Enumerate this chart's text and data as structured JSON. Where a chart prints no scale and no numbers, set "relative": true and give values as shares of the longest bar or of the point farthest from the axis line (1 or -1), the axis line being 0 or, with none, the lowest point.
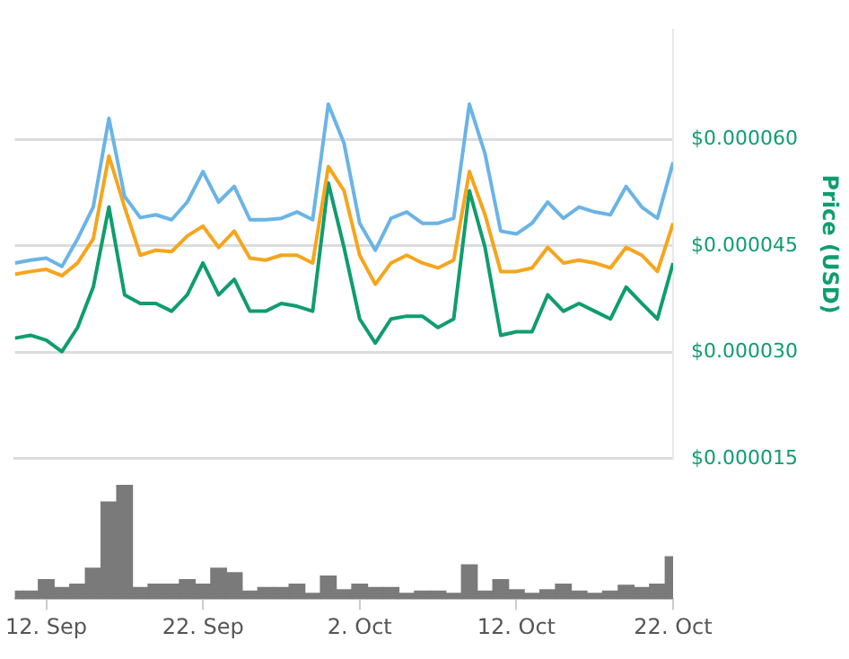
{
  "chart_data": [
    {
      "type": "line",
      "ylabel": "Price (USD)",
      "x": [
        "--09-10",
        "--09-11",
        "--09-12",
        "--09-13",
        "--09-14",
        "--09-15",
        "--09-16",
        "--09-17",
        "--09-18",
        "--09-19",
        "--09-20",
        "--09-21",
        "--09-22",
        "--09-23",
        "--09-24",
        "--09-25",
        "--09-26",
        "--09-27",
        "--09-28",
        "--09-29",
        "--09-30",
        "--10-01",
        "--10-02",
        "--10-03",
        "--10-04",
        "--10-05",
        "--10-06",
        "--10-07",
        "--10-08",
        "--10-09",
        "--10-10",
        "--10-11",
        "--10-12",
        "--10-13",
        "--10-14",
        "--10-15",
        "--10-16",
        "--10-17",
        "--10-18",
        "--10-19",
        "--10-20",
        "--10-21",
        "--10-22"
      ],
      "series": [
        {
          "color": "#6ab4e6",
          "values": [
            4.26e-05,
            4.3e-05,
            4.33e-05,
            4.21e-05,
            4.6e-05,
            5.05e-05,
            6.3e-05,
            5.2e-05,
            4.9e-05,
            4.94e-05,
            4.87e-05,
            5.12e-05,
            5.55e-05,
            5.12e-05,
            5.34e-05,
            4.87e-05,
            4.87e-05,
            4.89e-05,
            4.98e-05,
            4.87e-05,
            6.5e-05,
            5.95e-05,
            4.82e-05,
            4.44e-05,
            4.89e-05,
            4.98e-05,
            4.82e-05,
            4.82e-05,
            4.89e-05,
            6.5e-05,
            5.8e-05,
            4.71e-05,
            4.67e-05,
            4.82e-05,
            5.12e-05,
            4.89e-05,
            5.05e-05,
            4.98e-05,
            4.94e-05,
            5.34e-05,
            5.05e-05,
            4.89e-05,
            5.68e-05
          ]
        },
        {
          "color": "#f6a51c",
          "values": [
            4.1e-05,
            4.14e-05,
            4.17e-05,
            4.08e-05,
            4.26e-05,
            4.6e-05,
            5.77e-05,
            5.05e-05,
            4.37e-05,
            4.44e-05,
            4.42e-05,
            4.64e-05,
            4.78e-05,
            4.48e-05,
            4.71e-05,
            4.33e-05,
            4.3e-05,
            4.37e-05,
            4.37e-05,
            4.26e-05,
            5.62e-05,
            5.28e-05,
            4.37e-05,
            3.96e-05,
            4.26e-05,
            4.37e-05,
            4.26e-05,
            4.19e-05,
            4.3e-05,
            5.55e-05,
            4.94e-05,
            4.14e-05,
            4.14e-05,
            4.19e-05,
            4.48e-05,
            4.26e-05,
            4.3e-05,
            4.26e-05,
            4.19e-05,
            4.48e-05,
            4.37e-05,
            4.14e-05,
            4.82e-05
          ]
        },
        {
          "color": "#0f9d6e",
          "values": [
            3.2e-05,
            3.24e-05,
            3.17e-05,
            3.01e-05,
            3.35e-05,
            3.92e-05,
            5.05e-05,
            3.81e-05,
            3.69e-05,
            3.69e-05,
            3.58e-05,
            3.81e-05,
            4.26e-05,
            3.81e-05,
            4.03e-05,
            3.58e-05,
            3.58e-05,
            3.69e-05,
            3.65e-05,
            3.58e-05,
            5.39e-05,
            4.48e-05,
            3.47e-05,
            3.13e-05,
            3.47e-05,
            3.51e-05,
            3.51e-05,
            3.35e-05,
            3.47e-05,
            5.28e-05,
            4.48e-05,
            3.24e-05,
            3.29e-05,
            3.29e-05,
            3.81e-05,
            3.58e-05,
            3.69e-05,
            3.58e-05,
            3.47e-05,
            3.92e-05,
            3.69e-05,
            3.47e-05,
            4.26e-05
          ]
        }
      ],
      "xlim": [
        "--09-10",
        "--10-22"
      ],
      "ylim": [
        1.5e-05,
        7.55e-05
      ],
      "yticks": [
        {
          "value": 1.5e-05,
          "label": "$0.000015"
        },
        {
          "value": 3e-05,
          "label": "$0.000030"
        },
        {
          "value": 4.5e-05,
          "label": "$0.000045"
        },
        {
          "value": 6e-05,
          "label": "$0.000060"
        }
      ],
      "grid": "y",
      "tick_labels": "y",
      "legend": false,
      "marker": "none",
      "line_style": "solid"
    },
    {
      "type": "bar",
      "relative": true,
      "x": [
        "--09-10",
        "--09-11",
        "--09-12",
        "--09-13",
        "--09-14",
        "--09-15",
        "--09-16",
        "--09-17",
        "--09-18",
        "--09-19",
        "--09-20",
        "--09-21",
        "--09-22",
        "--09-23",
        "--09-24",
        "--09-25",
        "--09-26",
        "--09-27",
        "--09-28",
        "--09-29",
        "--09-30",
        "--10-01",
        "--10-02",
        "--10-03",
        "--10-04",
        "--10-05",
        "--10-06",
        "--10-07",
        "--10-08",
        "--10-09",
        "--10-10",
        "--10-11",
        "--10-12",
        "--10-13",
        "--10-14",
        "--10-15",
        "--10-16",
        "--10-17",
        "--10-18",
        "--10-19",
        "--10-20",
        "--10-21",
        "--10-22"
      ],
      "values": [
        0.07,
        0.07,
        0.17,
        0.1,
        0.13,
        0.27,
        0.85,
        1,
        0.1,
        0.13,
        0.13,
        0.17,
        0.13,
        0.27,
        0.23,
        0.07,
        0.1,
        0.1,
        0.13,
        0.05,
        0.2,
        0.08,
        0.13,
        0.1,
        0.1,
        0.05,
        0.07,
        0.07,
        0.05,
        0.3,
        0.07,
        0.17,
        0.08,
        0.05,
        0.08,
        0.13,
        0.07,
        0.05,
        0.07,
        0.12,
        0.1,
        0.13,
        0.37
      ],
      "color": "#7a7a7a",
      "xlim": [
        "--09-10",
        "--10-22"
      ],
      "xticks": [
        {
          "value": "--09-12",
          "label": "12. Sep"
        },
        {
          "value": "--09-22",
          "label": "22. Sep"
        },
        {
          "value": "--10-02",
          "label": "2. Oct"
        },
        {
          "value": "--10-12",
          "label": "12. Oct"
        },
        {
          "value": "--10-22",
          "label": "22. Oct"
        }
      ],
      "tick_labels": "x",
      "legend": false
    }
  ]
}
